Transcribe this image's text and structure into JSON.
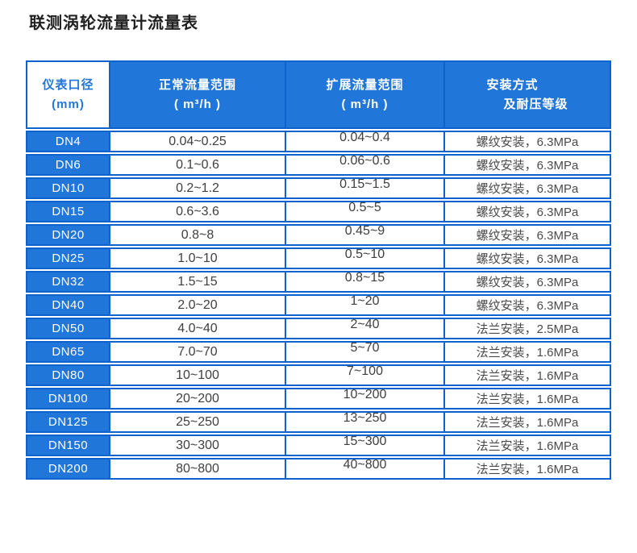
{
  "title": "联测涡轮流量计流量表",
  "colors": {
    "blue_fill": "#2176d9",
    "blue_border": "#0c63ce",
    "header_text": "#ffffff",
    "diameter_header_text": "#2176d9",
    "value_text": "#3f3f3f",
    "install_text": "#4a4a4a"
  },
  "table": {
    "headers": [
      {
        "line1": "仪表口径",
        "line2": "(mm)"
      },
      {
        "line1": "正常流量范围",
        "line2": "( m³/h )"
      },
      {
        "line1": "扩展流量范围",
        "line2": "( m³/h )"
      },
      {
        "line1": "安装方式",
        "line2": "及耐压等级"
      }
    ],
    "rows": [
      {
        "diameter": "DN4",
        "normal_range": "0.04~0.25",
        "extended_range": "0.04~0.4",
        "installation": "螺纹安装，6.3MPa"
      },
      {
        "diameter": "DN6",
        "normal_range": "0.1~0.6",
        "extended_range": "0.06~0.6",
        "installation": "螺纹安装，6.3MPa"
      },
      {
        "diameter": "DN10",
        "normal_range": "0.2~1.2",
        "extended_range": "0.15~1.5",
        "installation": "螺纹安装，6.3MPa"
      },
      {
        "diameter": "DN15",
        "normal_range": "0.6~3.6",
        "extended_range": "0.5~5",
        "installation": "螺纹安装，6.3MPa"
      },
      {
        "diameter": "DN20",
        "normal_range": "0.8~8",
        "extended_range": "0.45~9",
        "installation": "螺纹安装，6.3MPa"
      },
      {
        "diameter": "DN25",
        "normal_range": "1.0~10",
        "extended_range": "0.5~10",
        "installation": "螺纹安装，6.3MPa"
      },
      {
        "diameter": "DN32",
        "normal_range": "1.5~15",
        "extended_range": "0.8~15",
        "installation": "螺纹安装，6.3MPa"
      },
      {
        "diameter": "DN40",
        "normal_range": "2.0~20",
        "extended_range": "1~20",
        "installation": "螺纹安装，6.3MPa"
      },
      {
        "diameter": "DN50",
        "normal_range": "4.0~40",
        "extended_range": "2~40",
        "installation": "法兰安装，2.5MPa"
      },
      {
        "diameter": "DN65",
        "normal_range": "7.0~70",
        "extended_range": "5~70",
        "installation": "法兰安装，1.6MPa"
      },
      {
        "diameter": "DN80",
        "normal_range": "10~100",
        "extended_range": "7~100",
        "installation": "法兰安装，1.6MPa"
      },
      {
        "diameter": "DN100",
        "normal_range": "20~200",
        "extended_range": "10~200",
        "installation": "法兰安装，1.6MPa"
      },
      {
        "diameter": "DN125",
        "normal_range": "25~250",
        "extended_range": "13~250",
        "installation": "法兰安装，1.6MPa"
      },
      {
        "diameter": "DN150",
        "normal_range": "30~300",
        "extended_range": "15~300",
        "installation": "法兰安装，1.6MPa"
      },
      {
        "diameter": "DN200",
        "normal_range": "80~800",
        "extended_range": "40~800",
        "installation": "法兰安装，1.6MPa"
      }
    ]
  }
}
